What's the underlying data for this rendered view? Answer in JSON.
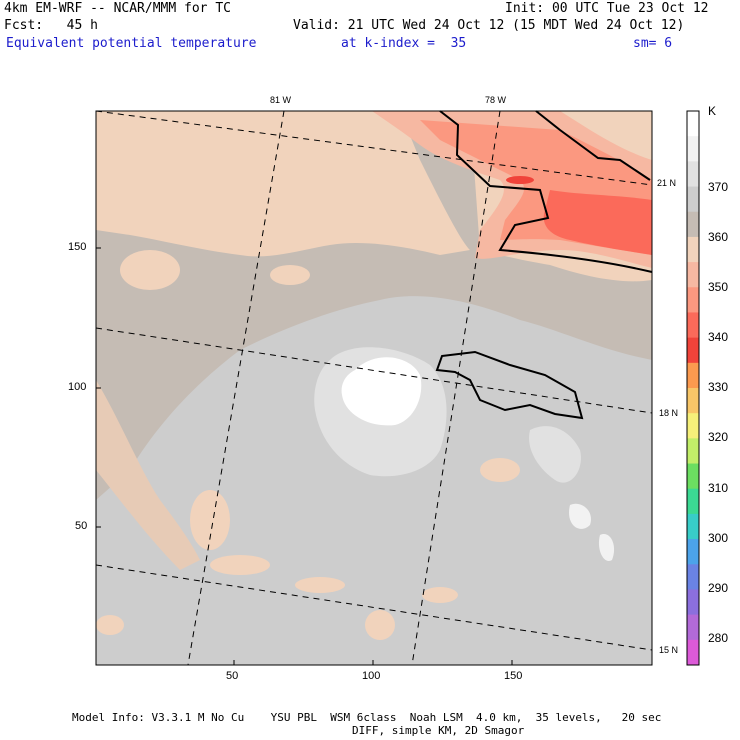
{
  "header": {
    "model": "4km EM-WRF -- NCAR/MMM for TC",
    "init": "Init: 00 UTC Tue 23 Oct 12",
    "fcst": "Fcst:   45 h",
    "valid": "Valid: 21 UTC Wed 24 Oct 12 (15 MDT Wed 24 Oct 12)",
    "field": "Equivalent potential temperature",
    "level": "at k-index =  35",
    "smooth": "sm= 6"
  },
  "map": {
    "x_ticks": [
      "50",
      "100",
      "150"
    ],
    "y_ticks": [
      "150",
      "100",
      "50"
    ],
    "lon_labels": [
      "81 W",
      "78 W"
    ],
    "lat_labels": [
      "21 N",
      "18 N",
      "15 N"
    ]
  },
  "colorbar": {
    "unit": "K",
    "levels": [
      "370",
      "360",
      "350",
      "340",
      "330",
      "320",
      "310",
      "300",
      "290",
      "280"
    ],
    "colors": [
      "#ffffff",
      "#f2f2f2",
      "#e1e1e1",
      "#cdcdcd",
      "#c5bcb4",
      "#f1d3bc",
      "#f6b8a2",
      "#fb9880",
      "#fb6a5a",
      "#f0433a",
      "#fb9a4f",
      "#f8c668",
      "#f6f07a",
      "#c2ee69",
      "#6cde61",
      "#3bd993",
      "#38cdc8",
      "#4ca3ea",
      "#6a83e4",
      "#8b6fdd",
      "#b26ad8",
      "#dc5ad8"
    ]
  },
  "footer": {
    "line1": "Model Info: V3.3.1 M No Cu    YSU PBL  WSM 6class  Noah LSM  4.0 km,  35 levels,   20 sec",
    "line2": "DIFF, simple KM, 2D Smagor"
  }
}
